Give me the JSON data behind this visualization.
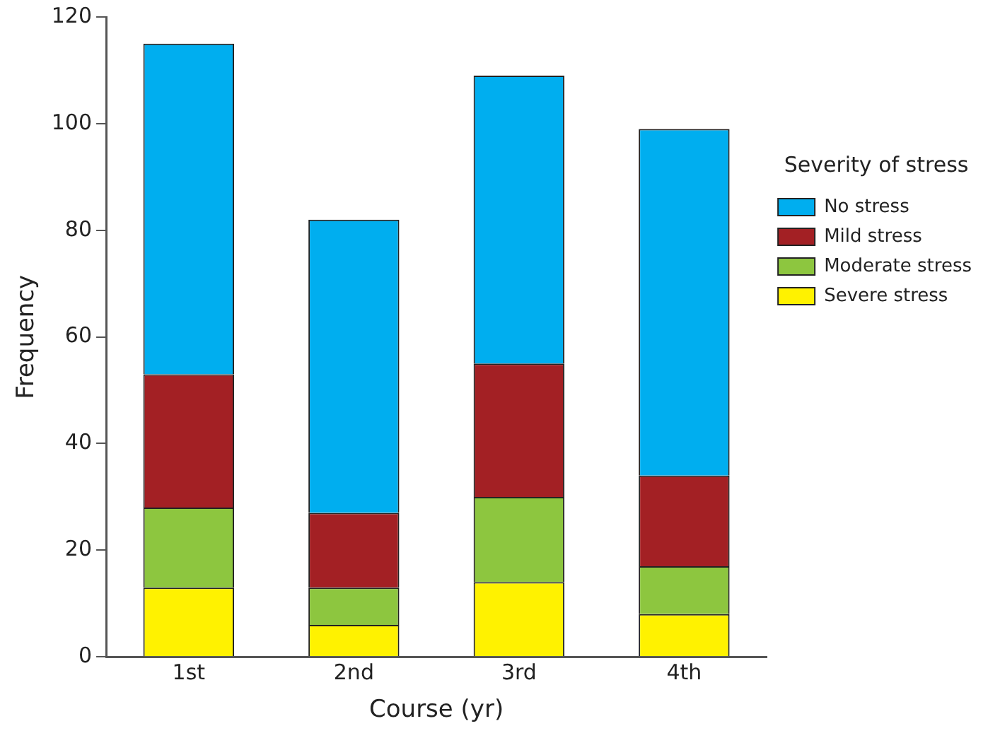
{
  "chart_data": {
    "type": "bar",
    "stacked": true,
    "xlabel": "Course (yr)",
    "ylabel": "Frequency",
    "legend_title": "Severity of stress",
    "legend": "right",
    "grid": false,
    "categories": [
      "1st",
      "2nd",
      "3rd",
      "4th"
    ],
    "ylim": [
      0,
      120
    ],
    "yticks": [
      0,
      20,
      40,
      60,
      80,
      100,
      120
    ],
    "series": [
      {
        "name": "Severe stress",
        "color": "#fff200",
        "values": [
          13,
          6,
          14,
          8
        ]
      },
      {
        "name": "Moderate stress",
        "color": "#8dc63f",
        "values": [
          15,
          7,
          16,
          9
        ]
      },
      {
        "name": "Mild stress",
        "color": "#a32024",
        "values": [
          25,
          14,
          25,
          17
        ]
      },
      {
        "name": "No stress",
        "color": "#00aeef",
        "values": [
          62,
          55,
          54,
          65
        ]
      }
    ]
  }
}
